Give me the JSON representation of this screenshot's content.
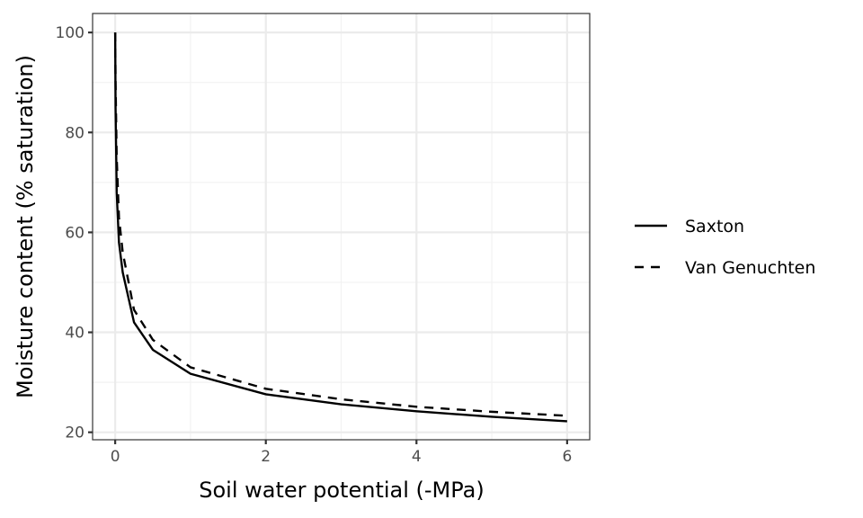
{
  "chart_data": {
    "type": "line",
    "title": "",
    "xlabel": "Soil water potential (-MPa)",
    "ylabel": "Moisture content (% saturation)",
    "xlim": [
      -0.3,
      6.3
    ],
    "ylim": [
      18.5,
      103.8
    ],
    "x_ticks": [
      0,
      2,
      4,
      6
    ],
    "x_tick_labels": [
      "0",
      "2",
      "4",
      "6"
    ],
    "y_ticks": [
      20,
      40,
      60,
      80,
      100
    ],
    "y_tick_labels": [
      "20",
      "40",
      "60",
      "80",
      "100"
    ],
    "grid": true,
    "legend_position": "right",
    "series": [
      {
        "name": "Saxton",
        "linestyle": "solid",
        "color": "#000000",
        "x": [
          0,
          0.005,
          0.02,
          0.05,
          0.1,
          0.25,
          0.5,
          1,
          2,
          3,
          4,
          5,
          6
        ],
        "y": [
          100,
          85,
          68,
          58,
          52,
          42,
          36.5,
          31.7,
          27.6,
          25.6,
          24.2,
          23.1,
          22.2
        ]
      },
      {
        "name": "Van Genuchten",
        "linestyle": "dashed",
        "color": "#000000",
        "x": [
          0,
          0.005,
          0.02,
          0.05,
          0.1,
          0.25,
          0.5,
          1,
          2,
          3,
          4,
          5,
          6
        ],
        "y": [
          100,
          90,
          75,
          63,
          56,
          44.5,
          38.5,
          33,
          28.7,
          26.6,
          25.1,
          24.1,
          23.3
        ]
      }
    ]
  },
  "legend": {
    "items": [
      {
        "label": "Saxton",
        "linestyle": "solid"
      },
      {
        "label": "Van Genuchten",
        "linestyle": "dashed"
      }
    ]
  },
  "colors": {
    "panel_border": "#333333",
    "grid_major": "#ebebeb",
    "grid_minor": "#f2f2f2",
    "tick_text": "#4d4d4d",
    "line": "#000000"
  }
}
